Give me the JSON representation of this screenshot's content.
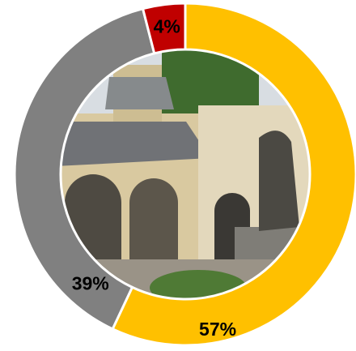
{
  "chart_data": {
    "type": "donut",
    "values": [
      57,
      39,
      4
    ],
    "value_labels": [
      "57%",
      "39%",
      "4%"
    ],
    "colors": [
      "#FFC000",
      "#808080",
      "#C00000"
    ]
  }
}
